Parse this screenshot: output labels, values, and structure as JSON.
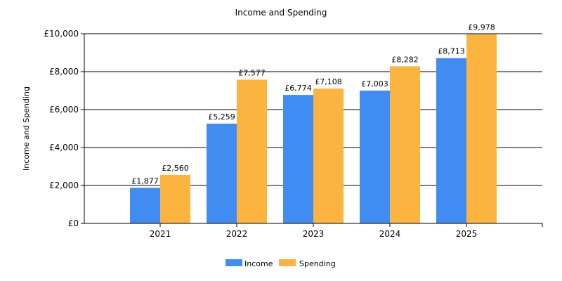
{
  "chart_data": {
    "type": "bar",
    "title": "Income and Spending",
    "xlabel": "",
    "ylabel": "Income and Spending",
    "categories": [
      "2021",
      "2022",
      "2023",
      "2024",
      "2025"
    ],
    "series": [
      {
        "name": "Income",
        "values": [
          1877,
          5259,
          6774,
          7003,
          8713
        ],
        "labels": [
          "£1,877",
          "£5,259",
          "£6,774",
          "£7,003",
          "£8,713"
        ],
        "color": "#418CF0"
      },
      {
        "name": "Spending",
        "values": [
          2560,
          7577,
          7108,
          8282,
          9978
        ],
        "labels": [
          "£2,560",
          "£7,577",
          "£7,108",
          "£8,282",
          "£9,978"
        ],
        "color": "#FCB441"
      }
    ],
    "ylim": [
      0,
      10000
    ],
    "yticks": [
      0,
      2000,
      4000,
      6000,
      8000,
      10000
    ],
    "ytick_labels": [
      "£0",
      "£2,000",
      "£4,000",
      "£6,000",
      "£8,000",
      "£10,000"
    ],
    "grid": true,
    "legend_position": "bottom-center"
  }
}
